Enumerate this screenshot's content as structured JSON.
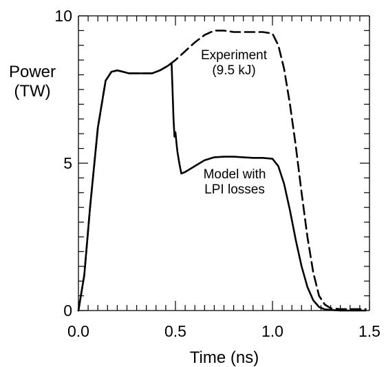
{
  "chart_data": {
    "type": "line",
    "title": "",
    "xlabel": "Time  (ns)",
    "ylabel_lines": [
      "Power",
      "(TW)"
    ],
    "xlim": [
      0.0,
      1.5
    ],
    "ylim": [
      0,
      10
    ],
    "x_ticks": [
      {
        "value": 0.0,
        "label": "0.0"
      },
      {
        "value": 0.5,
        "label": "0.5"
      },
      {
        "value": 1.0,
        "label": "1.0"
      },
      {
        "value": 1.5,
        "label": "1.5"
      }
    ],
    "y_ticks": [
      {
        "value": 0,
        "label": "0"
      },
      {
        "value": 5,
        "label": "5"
      },
      {
        "value": 10,
        "label": "10"
      }
    ],
    "x_minor_step": 0.05,
    "y_minor_step": 0.5,
    "grid": false,
    "series": [
      {
        "dash": "dashed",
        "x": [
          0.0,
          0.03,
          0.06,
          0.1,
          0.14,
          0.17,
          0.2,
          0.23,
          0.26,
          0.3,
          0.34,
          0.38,
          0.42,
          0.46,
          0.5,
          0.55,
          0.6,
          0.65,
          0.7,
          0.75,
          0.8,
          0.85,
          0.9,
          0.95,
          1.0,
          1.03,
          1.06,
          1.09,
          1.12,
          1.15,
          1.18,
          1.21,
          1.24,
          1.27,
          1.3,
          1.35,
          1.4,
          1.45,
          1.48
        ],
        "values": [
          0.0,
          1.2,
          3.5,
          6.2,
          7.8,
          8.1,
          8.15,
          8.1,
          8.05,
          8.05,
          8.05,
          8.05,
          8.15,
          8.3,
          8.5,
          8.8,
          9.1,
          9.35,
          9.5,
          9.5,
          9.45,
          9.45,
          9.45,
          9.45,
          9.4,
          9.0,
          8.2,
          7.0,
          5.6,
          4.0,
          2.5,
          1.3,
          0.5,
          0.2,
          0.08,
          0.05,
          0.05,
          0.05,
          0.05
        ]
      },
      {
        "dash": "solid",
        "x": [
          0.0,
          0.03,
          0.06,
          0.1,
          0.14,
          0.17,
          0.2,
          0.23,
          0.26,
          0.3,
          0.34,
          0.38,
          0.42,
          0.46,
          0.48,
          0.49,
          0.495,
          0.5,
          0.505,
          0.51,
          0.52,
          0.53,
          0.55,
          0.6,
          0.65,
          0.7,
          0.75,
          0.8,
          0.85,
          0.9,
          0.95,
          1.0,
          1.03,
          1.06,
          1.09,
          1.12,
          1.15,
          1.18,
          1.21,
          1.24,
          1.27,
          1.3,
          1.35,
          1.4,
          1.45,
          1.48
        ],
        "values": [
          0.0,
          1.2,
          3.5,
          6.2,
          7.8,
          8.1,
          8.15,
          8.1,
          8.05,
          8.05,
          8.05,
          8.05,
          8.15,
          8.3,
          8.4,
          6.5,
          5.9,
          6.05,
          5.7,
          5.4,
          5.0,
          4.65,
          4.7,
          4.9,
          5.1,
          5.2,
          5.22,
          5.22,
          5.2,
          5.18,
          5.18,
          5.15,
          4.9,
          4.3,
          3.4,
          2.4,
          1.5,
          0.8,
          0.35,
          0.12,
          0.04,
          0.02,
          0.0,
          0.0,
          0.0,
          0.0
        ]
      }
    ],
    "annotations": [
      {
        "id": "experiment",
        "lines": [
          "Experiment",
          "(9.5 kJ)"
        ]
      },
      {
        "id": "model",
        "lines": [
          "Model with",
          "LPI losses"
        ]
      }
    ]
  }
}
